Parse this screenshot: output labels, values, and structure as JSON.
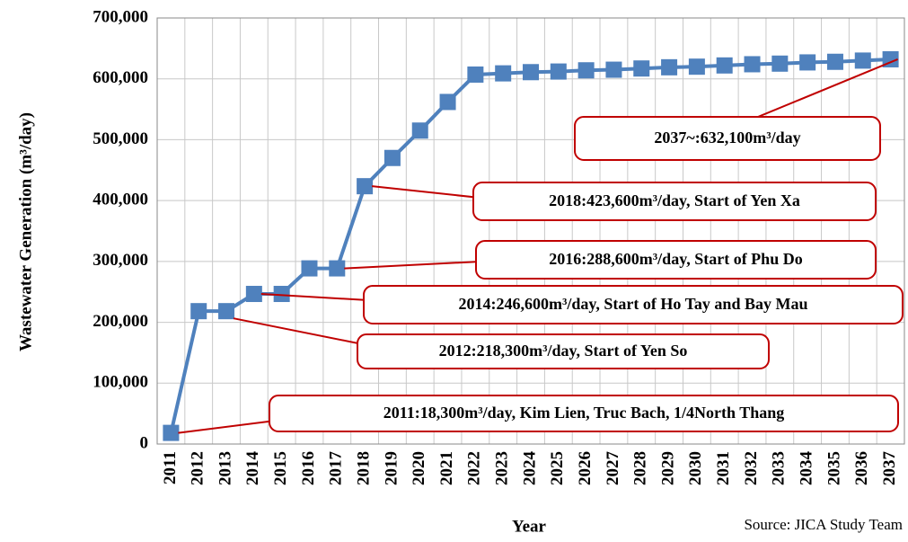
{
  "chart_data": {
    "type": "line",
    "ylabel": "Wastewater Generation (m³/day)",
    "xlabel": "Year",
    "source": "Source: JICA Study Team",
    "categories": [
      "2011",
      "2012",
      "2013",
      "2014",
      "2015",
      "2016",
      "2017",
      "2018",
      "2019",
      "2020",
      "2021",
      "2022",
      "2023",
      "2024",
      "2025",
      "2026",
      "2027",
      "2028",
      "2029",
      "2030",
      "2031",
      "2032",
      "2033",
      "2034",
      "2035",
      "2036",
      "2037"
    ],
    "series": [
      {
        "name": "Wastewater Generation",
        "color": "#4f81bd",
        "values": [
          18300,
          218300,
          218300,
          246600,
          246600,
          288600,
          288600,
          423600,
          470000,
          515000,
          562000,
          607000,
          609000,
          611000,
          612000,
          614000,
          615000,
          617000,
          619000,
          620000,
          622000,
          624000,
          625000,
          627000,
          628000,
          630000,
          632100
        ]
      }
    ],
    "ylim": [
      0,
      700000
    ],
    "yticks": [
      {
        "value": 0,
        "label": "0"
      },
      {
        "value": 100000,
        "label": "100,000"
      },
      {
        "value": 200000,
        "label": "200,000"
      },
      {
        "value": 300000,
        "label": "300,000"
      },
      {
        "value": 400000,
        "label": "400,000"
      },
      {
        "value": 500000,
        "label": "500,000"
      },
      {
        "value": 600000,
        "label": "600,000"
      },
      {
        "value": 700000,
        "label": "700,000"
      }
    ],
    "grid": true,
    "annotations": [
      "2037~:632,100m³/day",
      "2018:423,600m³/day, Start of Yen Xa",
      "2016:288,600m³/day, Start of Phu Do",
      "2014:246,600m³/day, Start of Ho Tay and Bay Mau",
      "2012:218,300m³/day, Start of Yen So",
      "2011:18,300m³/day, Kim Lien, Truc Bach, 1/4North Thang"
    ]
  }
}
